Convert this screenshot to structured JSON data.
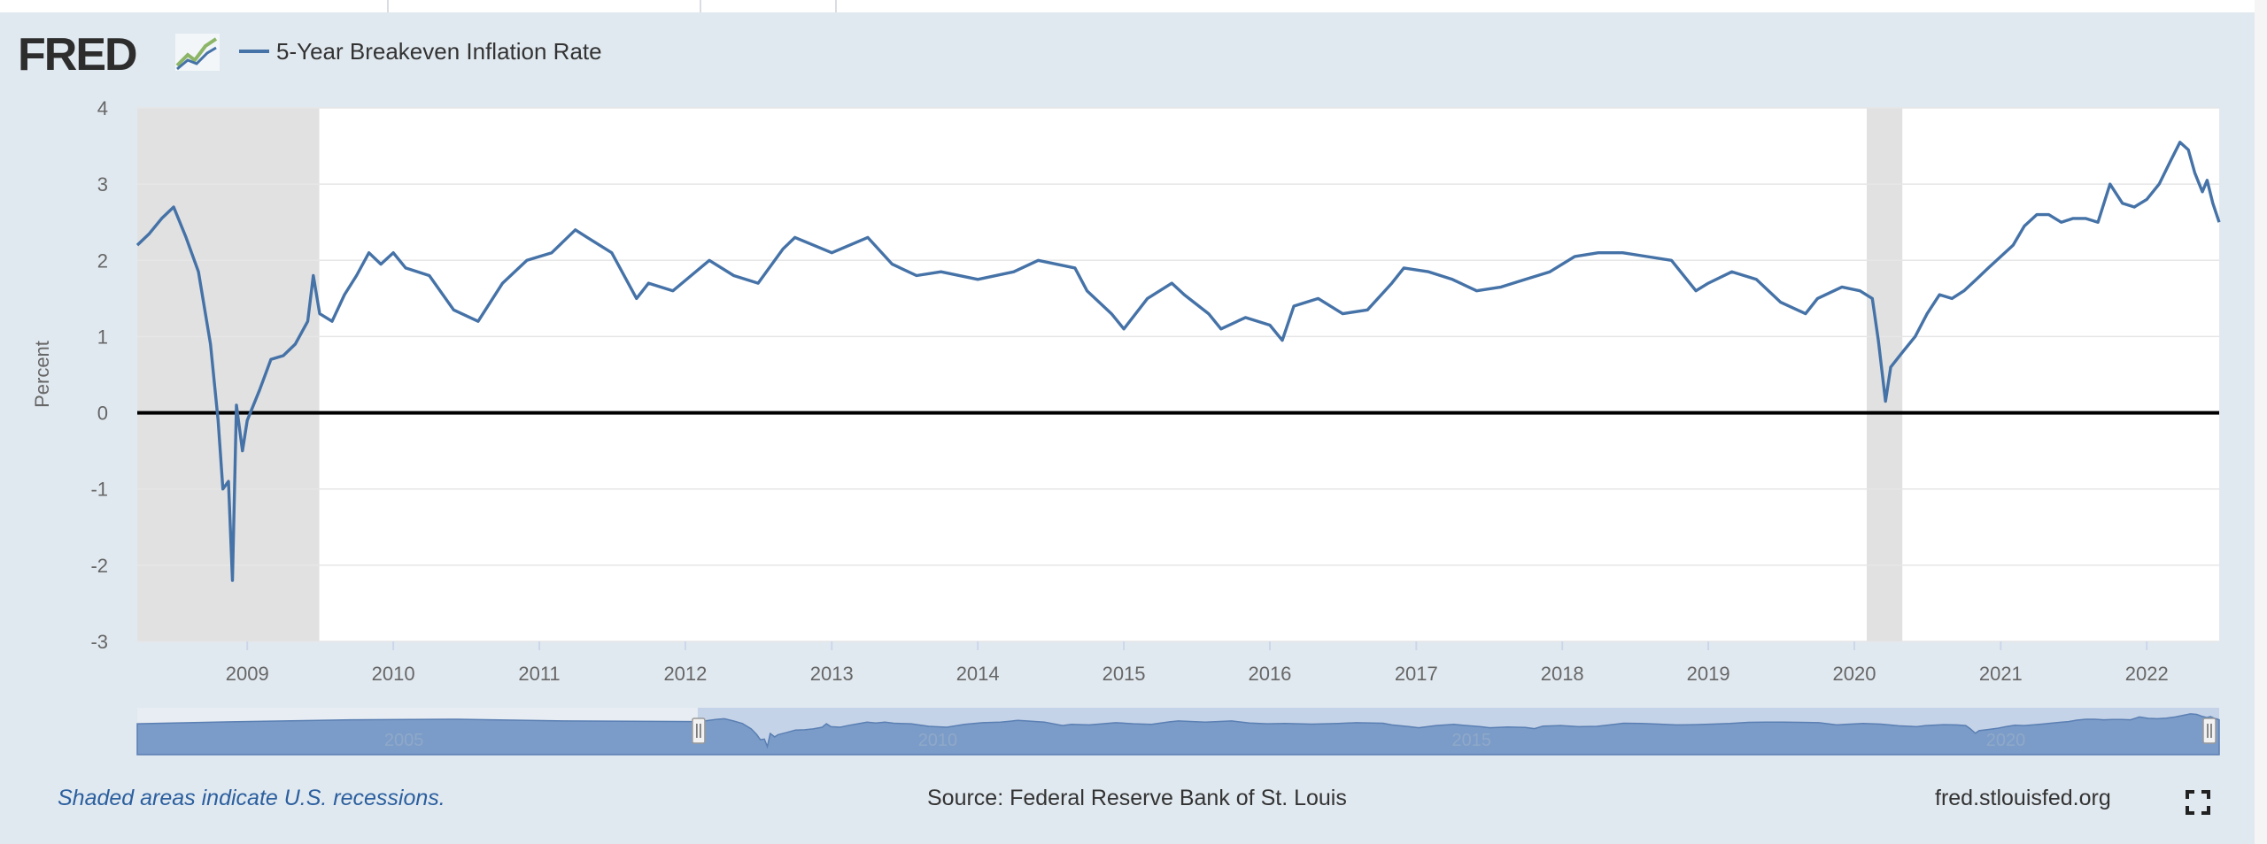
{
  "header": {
    "logo_text": "FRED",
    "legend_label": "5-Year Breakeven Inflation Rate"
  },
  "footer": {
    "recession_note": "Shaded areas indicate U.S. recessions.",
    "source": "Source: Federal Reserve Bank of St. Louis",
    "site": "fred.stlouisfed.org"
  },
  "colors": {
    "series": "#4572a7",
    "recession_shade": "#e1e1e1",
    "page_bg": "#e1e9f0",
    "note_text": "#2b5f9e"
  },
  "icons": {
    "logo_graph": "line-graph-icon",
    "fullscreen": "fullscreen-icon"
  },
  "navigator": {
    "year_labels": [
      "2005",
      "2010",
      "2015",
      "2020"
    ],
    "selected_range": [
      "2008-04-01",
      "2022-07-01"
    ]
  },
  "chart_data": {
    "type": "line",
    "title": "",
    "ylabel": "Percent",
    "xlabel": "",
    "ylim": [
      -3,
      4
    ],
    "xlim": [
      "2008-04-01",
      "2022-07-01"
    ],
    "y_ticks": [
      4,
      3,
      2,
      1,
      0,
      -1,
      -2,
      -3
    ],
    "x_ticks": [
      "2009",
      "2010",
      "2011",
      "2012",
      "2013",
      "2014",
      "2015",
      "2016",
      "2017",
      "2018",
      "2019",
      "2020",
      "2021",
      "2022"
    ],
    "grid": true,
    "legend_position": "top-left",
    "recessions": [
      [
        "2008-04-01",
        "2009-06-30"
      ],
      [
        "2020-02-01",
        "2020-04-30"
      ]
    ],
    "series": [
      {
        "name": "5-Year Breakeven Inflation Rate",
        "x": [
          "2008-04-01",
          "2008-05-01",
          "2008-06-01",
          "2008-07-01",
          "2008-08-01",
          "2008-09-01",
          "2008-10-01",
          "2008-10-20",
          "2008-11-01",
          "2008-11-15",
          "2008-11-25",
          "2008-12-05",
          "2008-12-20",
          "2009-01-01",
          "2009-02-01",
          "2009-03-01",
          "2009-04-01",
          "2009-05-01",
          "2009-06-01",
          "2009-06-15",
          "2009-07-01",
          "2009-08-01",
          "2009-09-01",
          "2009-10-01",
          "2009-11-01",
          "2009-12-01",
          "2010-01-01",
          "2010-02-01",
          "2010-04-01",
          "2010-06-01",
          "2010-08-01",
          "2010-10-01",
          "2010-12-01",
          "2011-02-01",
          "2011-04-01",
          "2011-05-01",
          "2011-07-01",
          "2011-09-01",
          "2011-10-01",
          "2011-12-01",
          "2012-03-01",
          "2012-05-01",
          "2012-07-01",
          "2012-09-01",
          "2012-10-01",
          "2013-01-01",
          "2013-04-01",
          "2013-06-01",
          "2013-08-01",
          "2013-10-01",
          "2014-01-01",
          "2014-04-01",
          "2014-06-01",
          "2014-09-01",
          "2014-10-01",
          "2014-12-01",
          "2015-01-01",
          "2015-03-01",
          "2015-05-01",
          "2015-06-01",
          "2015-08-01",
          "2015-09-01",
          "2015-11-01",
          "2016-01-01",
          "2016-02-01",
          "2016-03-01",
          "2016-05-01",
          "2016-07-01",
          "2016-09-01",
          "2016-11-01",
          "2016-12-01",
          "2017-02-01",
          "2017-04-01",
          "2017-06-01",
          "2017-08-01",
          "2017-10-01",
          "2017-12-01",
          "2018-02-01",
          "2018-04-01",
          "2018-06-01",
          "2018-08-01",
          "2018-10-01",
          "2018-12-01",
          "2019-01-01",
          "2019-03-01",
          "2019-05-01",
          "2019-07-01",
          "2019-09-01",
          "2019-10-01",
          "2019-12-01",
          "2020-01-15",
          "2020-02-15",
          "2020-03-01",
          "2020-03-19",
          "2020-04-01",
          "2020-05-01",
          "2020-06-01",
          "2020-07-01",
          "2020-08-01",
          "2020-09-01",
          "2020-10-01",
          "2020-11-01",
          "2020-12-01",
          "2021-01-01",
          "2021-02-01",
          "2021-03-01",
          "2021-04-01",
          "2021-05-01",
          "2021-06-01",
          "2021-07-01",
          "2021-08-01",
          "2021-09-01",
          "2021-10-01",
          "2021-11-01",
          "2021-12-01",
          "2022-01-01",
          "2022-02-01",
          "2022-03-01",
          "2022-03-25",
          "2022-04-15",
          "2022-05-01",
          "2022-05-20",
          "2022-06-01",
          "2022-06-15",
          "2022-07-01"
        ],
        "y": [
          2.2,
          2.35,
          2.55,
          2.7,
          2.3,
          1.85,
          0.9,
          -0.1,
          -1.0,
          -0.9,
          -2.2,
          0.1,
          -0.5,
          -0.1,
          0.3,
          0.7,
          0.75,
          0.9,
          1.2,
          1.8,
          1.3,
          1.2,
          1.55,
          1.8,
          2.1,
          1.95,
          2.1,
          1.9,
          1.8,
          1.35,
          1.2,
          1.7,
          2.0,
          2.1,
          2.4,
          2.3,
          2.1,
          1.5,
          1.7,
          1.6,
          2.0,
          1.8,
          1.7,
          2.15,
          2.3,
          2.1,
          2.3,
          1.95,
          1.8,
          1.85,
          1.75,
          1.85,
          2.0,
          1.9,
          1.6,
          1.3,
          1.1,
          1.5,
          1.7,
          1.55,
          1.3,
          1.1,
          1.25,
          1.15,
          0.95,
          1.4,
          1.5,
          1.3,
          1.35,
          1.7,
          1.9,
          1.85,
          1.75,
          1.6,
          1.65,
          1.75,
          1.85,
          2.05,
          2.1,
          2.1,
          2.05,
          2.0,
          1.6,
          1.7,
          1.85,
          1.75,
          1.45,
          1.3,
          1.5,
          1.65,
          1.6,
          1.5,
          0.95,
          0.15,
          0.6,
          0.8,
          1.0,
          1.3,
          1.55,
          1.5,
          1.6,
          1.75,
          1.9,
          2.05,
          2.2,
          2.45,
          2.6,
          2.6,
          2.5,
          2.55,
          2.55,
          2.5,
          3.0,
          2.75,
          2.7,
          2.8,
          3.0,
          3.3,
          3.55,
          3.45,
          3.15,
          2.9,
          3.05,
          2.75,
          2.5
        ]
      }
    ]
  }
}
